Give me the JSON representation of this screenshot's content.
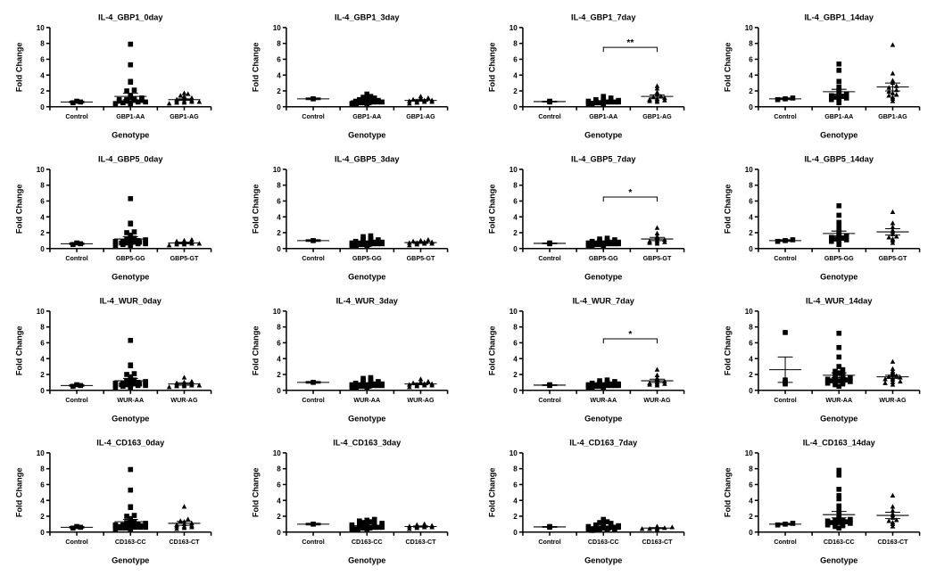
{
  "global": {
    "ylim": [
      0,
      10
    ],
    "ytick_step": 2,
    "ylabel": "Fold Change",
    "xlabel": "Genotype",
    "markers": [
      "square",
      "square",
      "triangle"
    ],
    "marker_size": 5,
    "axis_color": "#000000",
    "point_color": "#000000",
    "background": "#ffffff"
  },
  "panels": [
    {
      "title": "IL-4_GBP1_0day",
      "categories": [
        "Control",
        "GBP1-AA",
        "GBP1-AG"
      ],
      "data": [
        [
          0.5,
          0.6,
          0.7
        ],
        [
          0.3,
          0.4,
          0.5,
          0.5,
          0.6,
          0.6,
          0.7,
          0.7,
          0.8,
          0.8,
          0.9,
          0.9,
          1.0,
          1.1,
          1.2,
          1.4,
          2.0,
          2.1,
          3.1,
          3.2,
          5.3,
          7.9
        ],
        [
          0.4,
          0.5,
          0.5,
          0.6,
          0.6,
          0.7,
          0.7,
          0.8,
          0.9,
          1.0,
          1.1,
          1.3,
          1.4,
          1.6,
          1.7
        ]
      ],
      "means": [
        0.6,
        1.3,
        0.9
      ],
      "errs": [
        0.1,
        0.4,
        0.1
      ]
    },
    {
      "title": "IL-4_GBP1_3day",
      "categories": [
        "Control",
        "GBP1-AA",
        "GBP1-AG"
      ],
      "data": [
        [
          1.0
        ],
        [
          0.3,
          0.4,
          0.4,
          0.5,
          0.5,
          0.5,
          0.6,
          0.6,
          0.6,
          0.7,
          0.7,
          0.8,
          0.8,
          0.9,
          1.0,
          1.1,
          1.2,
          1.3,
          1.6
        ],
        [
          0.4,
          0.5,
          0.6,
          0.6,
          0.7,
          0.7,
          0.8,
          0.8,
          0.9,
          1.0,
          1.1,
          1.3
        ]
      ],
      "means": [
        1.0,
        0.75,
        0.8
      ],
      "errs": [
        0.1,
        0.1,
        0.1
      ]
    },
    {
      "title": "IL-4_GBP1_7day",
      "categories": [
        "Control",
        "GBP1-AA",
        "GBP1-AG"
      ],
      "data": [
        [
          0.6,
          0.7
        ],
        [
          0.3,
          0.4,
          0.4,
          0.5,
          0.5,
          0.5,
          0.6,
          0.6,
          0.6,
          0.6,
          0.7,
          0.7,
          0.7,
          0.8,
          0.8,
          0.9,
          1.0,
          1.1,
          1.3
        ],
        [
          0.6,
          0.7,
          0.8,
          0.8,
          0.9,
          1.0,
          1.1,
          1.2,
          1.3,
          1.5,
          1.8,
          2.3,
          2.6
        ]
      ],
      "means": [
        0.65,
        0.7,
        1.3
      ],
      "errs": [
        0.05,
        0.07,
        0.2
      ],
      "sig": {
        "from": 1,
        "to": 2,
        "label": "**",
        "y": 7.5
      }
    },
    {
      "title": "IL-4_GBP1_14day",
      "categories": [
        "Control",
        "GBP1-AA",
        "GBP1-AG"
      ],
      "data": [
        [
          0.9,
          1.0,
          1.1
        ],
        [
          0.5,
          0.8,
          0.9,
          1.0,
          1.1,
          1.2,
          1.3,
          1.4,
          1.5,
          1.6,
          1.8,
          2.0,
          2.2,
          2.5,
          3.2,
          4.6,
          5.4
        ],
        [
          0.7,
          1.0,
          1.2,
          1.4,
          1.5,
          1.7,
          1.9,
          2.1,
          2.4,
          2.6,
          3.0,
          3.3,
          4.2,
          7.8
        ]
      ],
      "means": [
        1.0,
        1.9,
        2.5
      ],
      "errs": [
        0.1,
        0.3,
        0.5
      ]
    },
    {
      "title": "IL-4_GBP5_0day",
      "categories": [
        "Control",
        "GBP5-GG",
        "GBP5-GT"
      ],
      "data": [
        [
          0.5,
          0.6,
          0.7
        ],
        [
          0.3,
          0.4,
          0.5,
          0.5,
          0.6,
          0.6,
          0.7,
          0.7,
          0.7,
          0.8,
          0.8,
          0.8,
          0.9,
          0.9,
          1.0,
          1.0,
          1.1,
          1.2,
          1.3,
          1.5,
          1.7,
          2.0,
          2.1,
          3.1,
          3.2,
          6.3
        ],
        [
          0.4,
          0.5,
          0.5,
          0.6,
          0.6,
          0.7,
          0.7,
          0.8,
          0.9,
          1.0,
          1.1
        ]
      ],
      "means": [
        0.6,
        1.2,
        0.7
      ],
      "errs": [
        0.1,
        0.3,
        0.1
      ]
    },
    {
      "title": "IL-4_GBP5_3day",
      "categories": [
        "Control",
        "GBP5-GG",
        "GBP5-GT"
      ],
      "data": [
        [
          1.0
        ],
        [
          0.3,
          0.4,
          0.4,
          0.5,
          0.5,
          0.5,
          0.6,
          0.6,
          0.6,
          0.7,
          0.7,
          0.7,
          0.8,
          0.8,
          0.9,
          0.9,
          1.0,
          1.1,
          1.2,
          1.3,
          1.5,
          1.6
        ],
        [
          0.4,
          0.5,
          0.6,
          0.6,
          0.7,
          0.7,
          0.8,
          0.8,
          0.9,
          1.0,
          1.1
        ]
      ],
      "means": [
        1.0,
        0.8,
        0.75
      ],
      "errs": [
        0.1,
        0.1,
        0.1
      ]
    },
    {
      "title": "IL-4_GBP5_7day",
      "categories": [
        "Control",
        "GBP5-GG",
        "GBP5-GT"
      ],
      "data": [
        [
          0.6,
          0.7
        ],
        [
          0.3,
          0.4,
          0.4,
          0.5,
          0.5,
          0.5,
          0.6,
          0.6,
          0.6,
          0.6,
          0.7,
          0.7,
          0.7,
          0.7,
          0.8,
          0.8,
          0.8,
          0.9,
          0.9,
          1.0,
          1.1,
          1.2,
          1.3
        ],
        [
          0.6,
          0.7,
          0.8,
          0.8,
          0.9,
          1.0,
          1.1,
          1.3,
          1.5,
          1.9,
          2.6
        ]
      ],
      "means": [
        0.65,
        0.72,
        1.2
      ],
      "errs": [
        0.05,
        0.07,
        0.2
      ],
      "sig": {
        "from": 1,
        "to": 2,
        "label": "*",
        "y": 6.5
      }
    },
    {
      "title": "IL-4_GBP5_14day",
      "categories": [
        "Control",
        "GBP5-GG",
        "GBP5-GT"
      ],
      "data": [
        [
          0.9,
          1.0,
          1.1
        ],
        [
          0.5,
          0.8,
          0.9,
          1.0,
          1.1,
          1.2,
          1.3,
          1.4,
          1.5,
          1.6,
          1.8,
          2.0,
          2.2,
          2.5,
          3.0,
          3.3,
          4.2,
          5.4
        ],
        [
          0.7,
          1.0,
          1.2,
          1.4,
          1.5,
          1.8,
          2.1,
          2.3,
          2.7,
          3.2,
          4.6
        ]
      ],
      "means": [
        1.0,
        1.9,
        2.1
      ],
      "errs": [
        0.1,
        0.3,
        0.4
      ]
    },
    {
      "title": "IL-4_WUR_0day",
      "categories": [
        "Control",
        "WUR-AA",
        "WUR-AG"
      ],
      "data": [
        [
          0.5,
          0.6,
          0.7
        ],
        [
          0.3,
          0.4,
          0.5,
          0.5,
          0.6,
          0.6,
          0.7,
          0.7,
          0.7,
          0.8,
          0.8,
          0.8,
          0.9,
          0.9,
          1.0,
          1.0,
          1.1,
          1.2,
          1.3,
          1.5,
          1.7,
          2.0,
          2.1,
          3.1,
          3.2,
          6.3
        ],
        [
          0.4,
          0.5,
          0.5,
          0.6,
          0.6,
          0.7,
          0.7,
          0.8,
          0.9,
          1.0,
          1.1,
          1.6
        ]
      ],
      "means": [
        0.6,
        1.2,
        0.8
      ],
      "errs": [
        0.1,
        0.3,
        0.15
      ]
    },
    {
      "title": "IL-4_WUR_3day",
      "categories": [
        "Control",
        "WUR-AA",
        "WUR-AG"
      ],
      "data": [
        [
          1.0
        ],
        [
          0.3,
          0.4,
          0.4,
          0.5,
          0.5,
          0.5,
          0.6,
          0.6,
          0.6,
          0.7,
          0.7,
          0.7,
          0.8,
          0.8,
          0.9,
          0.9,
          1.0,
          1.1,
          1.2,
          1.3,
          1.5,
          1.6
        ],
        [
          0.4,
          0.5,
          0.6,
          0.6,
          0.7,
          0.7,
          0.8,
          0.8,
          0.9,
          1.0,
          1.1,
          1.4
        ]
      ],
      "means": [
        1.0,
        0.8,
        0.8
      ],
      "errs": [
        0.1,
        0.1,
        0.1
      ]
    },
    {
      "title": "IL-4_WUR_7day",
      "categories": [
        "Control",
        "WUR-AA",
        "WUR-AG"
      ],
      "data": [
        [
          0.6,
          0.7
        ],
        [
          0.3,
          0.4,
          0.4,
          0.5,
          0.5,
          0.5,
          0.6,
          0.6,
          0.6,
          0.6,
          0.7,
          0.7,
          0.7,
          0.7,
          0.8,
          0.8,
          0.8,
          0.9,
          0.9,
          1.0,
          1.1,
          1.2,
          1.3
        ],
        [
          0.6,
          0.7,
          0.8,
          0.8,
          0.9,
          1.0,
          1.1,
          1.3,
          1.5,
          1.9,
          2.6
        ]
      ],
      "means": [
        0.65,
        0.72,
        1.2
      ],
      "errs": [
        0.05,
        0.07,
        0.2
      ],
      "sig": {
        "from": 1,
        "to": 2,
        "label": "*",
        "y": 6.5
      }
    },
    {
      "title": "IL-4_WUR_14day",
      "categories": [
        "Control",
        "WUR-AA",
        "WUR-AG"
      ],
      "data": [
        [
          0.8,
          1.0,
          1.3,
          7.3
        ],
        [
          0.5,
          0.7,
          0.8,
          0.9,
          1.0,
          1.0,
          1.1,
          1.2,
          1.2,
          1.3,
          1.4,
          1.5,
          1.5,
          1.6,
          1.7,
          1.8,
          1.9,
          2.0,
          2.2,
          2.4,
          2.6,
          3.0,
          4.2,
          5.4,
          7.2
        ],
        [
          0.7,
          0.9,
          1.0,
          1.1,
          1.3,
          1.4,
          1.5,
          1.6,
          1.7,
          1.8,
          2.0,
          2.2,
          2.4,
          2.7,
          3.6
        ]
      ],
      "means": [
        2.6,
        1.9,
        1.7
      ],
      "errs": [
        1.6,
        0.3,
        0.2
      ]
    },
    {
      "title": "IL-4_CD163_0day",
      "categories": [
        "Control",
        "CD163-CC",
        "CD163-CT"
      ],
      "data": [
        [
          0.5,
          0.6,
          0.7
        ],
        [
          0.3,
          0.4,
          0.5,
          0.5,
          0.5,
          0.6,
          0.6,
          0.6,
          0.7,
          0.7,
          0.7,
          0.7,
          0.8,
          0.8,
          0.8,
          0.9,
          0.9,
          1.0,
          1.0,
          1.1,
          1.2,
          1.3,
          1.5,
          1.7,
          2.0,
          2.1,
          3.1,
          3.2,
          5.3,
          7.9
        ],
        [
          0.4,
          0.5,
          0.6,
          0.7,
          0.7,
          0.8,
          0.9,
          1.0,
          1.1,
          1.3,
          1.4,
          1.6,
          3.2
        ]
      ],
      "means": [
        0.6,
        1.3,
        1.1
      ],
      "errs": [
        0.1,
        0.3,
        0.25
      ]
    },
    {
      "title": "IL-4_CD163_3day",
      "categories": [
        "Control",
        "CD163-CC",
        "CD163-CT"
      ],
      "data": [
        [
          1.0
        ],
        [
          0.3,
          0.4,
          0.4,
          0.4,
          0.5,
          0.5,
          0.5,
          0.5,
          0.6,
          0.6,
          0.6,
          0.6,
          0.7,
          0.7,
          0.7,
          0.8,
          0.8,
          0.9,
          0.9,
          1.0,
          1.0,
          1.1,
          1.2,
          1.3,
          1.4,
          1.5,
          1.6
        ],
        [
          0.4,
          0.5,
          0.6,
          0.6,
          0.7,
          0.7,
          0.8,
          0.8,
          0.9,
          1.0
        ]
      ],
      "means": [
        1.0,
        0.8,
        0.7
      ],
      "errs": [
        0.1,
        0.08,
        0.07
      ]
    },
    {
      "title": "IL-4_CD163_7day",
      "categories": [
        "Control",
        "CD163-CC",
        "CD163-CT"
      ],
      "data": [
        [
          0.6,
          0.7
        ],
        [
          0.2,
          0.3,
          0.3,
          0.3,
          0.4,
          0.4,
          0.4,
          0.4,
          0.5,
          0.5,
          0.5,
          0.5,
          0.5,
          0.6,
          0.6,
          0.6,
          0.6,
          0.7,
          0.7,
          0.7,
          0.8,
          0.8,
          0.9,
          1.0,
          1.1,
          1.2,
          1.3,
          1.6
        ],
        [
          0.3,
          0.4,
          0.4,
          0.5,
          0.5,
          0.6,
          0.7
        ]
      ],
      "means": [
        0.65,
        0.65,
        0.5
      ],
      "errs": [
        0.05,
        0.07,
        0.06
      ]
    },
    {
      "title": "IL-4_CD163_14day",
      "categories": [
        "Control",
        "CD163-CC",
        "CD163-CT"
      ],
      "data": [
        [
          0.9,
          1.0,
          1.1
        ],
        [
          0.5,
          0.7,
          0.8,
          0.9,
          1.0,
          1.0,
          1.1,
          1.2,
          1.2,
          1.3,
          1.4,
          1.5,
          1.5,
          1.6,
          1.8,
          2.0,
          2.2,
          2.5,
          3.0,
          3.3,
          4.2,
          4.6,
          5.4,
          7.2,
          7.8
        ],
        [
          0.7,
          1.0,
          1.2,
          1.4,
          1.5,
          1.8,
          2.1,
          2.3,
          2.7,
          3.2,
          4.6
        ]
      ],
      "means": [
        1.0,
        2.2,
        2.1
      ],
      "errs": [
        0.1,
        0.4,
        0.4
      ]
    }
  ]
}
